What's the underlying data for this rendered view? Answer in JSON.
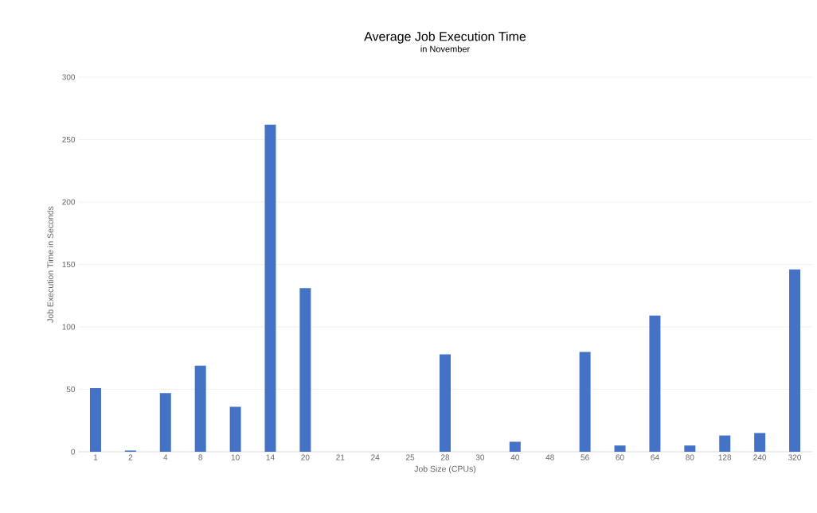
{
  "chart_data": {
    "type": "bar",
    "title": "Average Job Execution Time",
    "subtitle": "in November",
    "xlabel": "Job Size (CPUs)",
    "ylabel": "Job Execution Time in Seconds",
    "categories": [
      "1",
      "2",
      "4",
      "8",
      "10",
      "14",
      "20",
      "21",
      "24",
      "25",
      "28",
      "30",
      "40",
      "48",
      "56",
      "60",
      "64",
      "80",
      "128",
      "240",
      "320"
    ],
    "values": [
      51,
      1,
      47,
      69,
      36,
      262,
      131,
      0,
      0,
      0,
      78,
      0,
      8,
      0,
      80,
      5,
      109,
      5,
      13,
      15,
      146
    ],
    "color": "#4472c4",
    "ylim": [
      0,
      300
    ],
    "yticks": [
      0,
      50,
      100,
      150,
      200,
      250,
      300
    ],
    "grid": "y"
  }
}
